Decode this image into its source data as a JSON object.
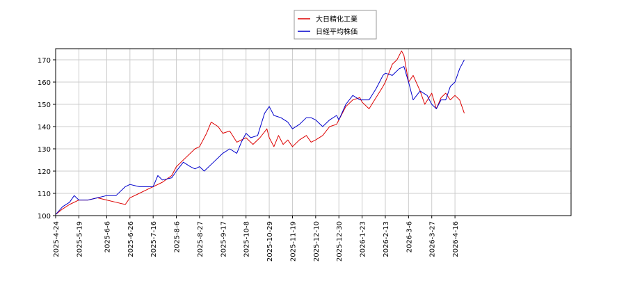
{
  "chart_data": {
    "type": "line",
    "title": "",
    "xlabel": "",
    "ylabel": "",
    "ylim": [
      100,
      175
    ],
    "grid": true,
    "legend_placement": "top-center",
    "y_ticks": [
      100,
      110,
      120,
      130,
      140,
      150,
      160,
      170
    ],
    "x_tick_labels": [
      "2025-4-24",
      "2025-5-19",
      "2025-6-6",
      "2025-6-26",
      "2025-7-16",
      "2025-8-6",
      "2025-8-27",
      "2025-9-17",
      "2025-10-8",
      "2025-10-29",
      "2025-11-19",
      "2025-12-10",
      "2025-12-30",
      "2026-1-23",
      "2026-2-13",
      "2026-3-6",
      "2026-3-27",
      "2026-4-16"
    ],
    "x_range": [
      0,
      222
    ],
    "x_tick_positions": [
      0,
      10,
      22,
      32,
      42,
      52,
      62,
      72,
      82,
      92,
      102,
      112,
      122,
      132,
      142,
      152,
      162,
      172
    ],
    "series": [
      {
        "name": "大日精化工業",
        "color": "#dd0000",
        "points": [
          [
            0,
            100.5
          ],
          [
            3,
            103
          ],
          [
            6,
            105
          ],
          [
            10,
            107
          ],
          [
            14,
            107
          ],
          [
            18,
            108
          ],
          [
            22,
            107
          ],
          [
            26,
            106
          ],
          [
            30,
            105
          ],
          [
            32,
            108
          ],
          [
            36,
            110
          ],
          [
            40,
            112
          ],
          [
            42,
            113
          ],
          [
            46,
            115
          ],
          [
            50,
            118
          ],
          [
            52,
            122
          ],
          [
            56,
            126
          ],
          [
            60,
            130
          ],
          [
            62,
            131
          ],
          [
            65,
            137
          ],
          [
            67,
            142
          ],
          [
            70,
            140
          ],
          [
            72,
            137
          ],
          [
            75,
            138
          ],
          [
            78,
            133
          ],
          [
            82,
            135
          ],
          [
            85,
            132
          ],
          [
            88,
            135
          ],
          [
            91,
            139
          ],
          [
            92,
            135
          ],
          [
            94,
            131
          ],
          [
            96,
            136
          ],
          [
            98,
            132
          ],
          [
            100,
            134
          ],
          [
            102,
            131
          ],
          [
            105,
            134
          ],
          [
            108,
            136
          ],
          [
            110,
            133
          ],
          [
            112,
            134
          ],
          [
            115,
            136
          ],
          [
            118,
            140
          ],
          [
            121,
            141
          ],
          [
            122,
            143
          ],
          [
            125,
            149
          ],
          [
            128,
            152
          ],
          [
            131,
            153
          ],
          [
            132,
            151
          ],
          [
            135,
            148
          ],
          [
            138,
            153
          ],
          [
            141,
            158
          ],
          [
            142,
            160
          ],
          [
            145,
            168
          ],
          [
            147,
            170
          ],
          [
            149,
            174
          ],
          [
            150,
            172
          ],
          [
            152,
            160
          ],
          [
            154,
            163
          ],
          [
            157,
            156
          ],
          [
            159,
            150
          ],
          [
            162,
            155
          ],
          [
            164,
            148
          ],
          [
            166,
            153
          ],
          [
            168,
            155
          ],
          [
            170,
            152
          ],
          [
            172,
            154
          ],
          [
            174,
            152
          ],
          [
            176,
            146
          ]
        ]
      },
      {
        "name": "日経平均株価",
        "color": "#0000cc",
        "points": [
          [
            0,
            100.5
          ],
          [
            3,
            104
          ],
          [
            6,
            106
          ],
          [
            8,
            109
          ],
          [
            10,
            107
          ],
          [
            14,
            107
          ],
          [
            18,
            108
          ],
          [
            22,
            109
          ],
          [
            26,
            109
          ],
          [
            30,
            113
          ],
          [
            32,
            114
          ],
          [
            36,
            113
          ],
          [
            40,
            113
          ],
          [
            42,
            113
          ],
          [
            44,
            118
          ],
          [
            46,
            116
          ],
          [
            50,
            117
          ],
          [
            52,
            120
          ],
          [
            55,
            124
          ],
          [
            58,
            122
          ],
          [
            60,
            121
          ],
          [
            62,
            122
          ],
          [
            64,
            120
          ],
          [
            68,
            124
          ],
          [
            72,
            128
          ],
          [
            75,
            130
          ],
          [
            78,
            128
          ],
          [
            80,
            133
          ],
          [
            82,
            137
          ],
          [
            84,
            135
          ],
          [
            87,
            136
          ],
          [
            90,
            146
          ],
          [
            92,
            149
          ],
          [
            94,
            145
          ],
          [
            97,
            144
          ],
          [
            100,
            142
          ],
          [
            102,
            139
          ],
          [
            105,
            141
          ],
          [
            108,
            144
          ],
          [
            110,
            144
          ],
          [
            112,
            143
          ],
          [
            115,
            140
          ],
          [
            118,
            143
          ],
          [
            121,
            145
          ],
          [
            122,
            143
          ],
          [
            125,
            150
          ],
          [
            128,
            154
          ],
          [
            131,
            152
          ],
          [
            132,
            152
          ],
          [
            135,
            152
          ],
          [
            138,
            157
          ],
          [
            141,
            163
          ],
          [
            142,
            164
          ],
          [
            145,
            163
          ],
          [
            148,
            166
          ],
          [
            150,
            167
          ],
          [
            152,
            160
          ],
          [
            154,
            152
          ],
          [
            157,
            156
          ],
          [
            160,
            154
          ],
          [
            162,
            150
          ],
          [
            164,
            148
          ],
          [
            166,
            152
          ],
          [
            168,
            152
          ],
          [
            170,
            158
          ],
          [
            172,
            160
          ],
          [
            174,
            166
          ],
          [
            176,
            170
          ]
        ]
      }
    ]
  }
}
